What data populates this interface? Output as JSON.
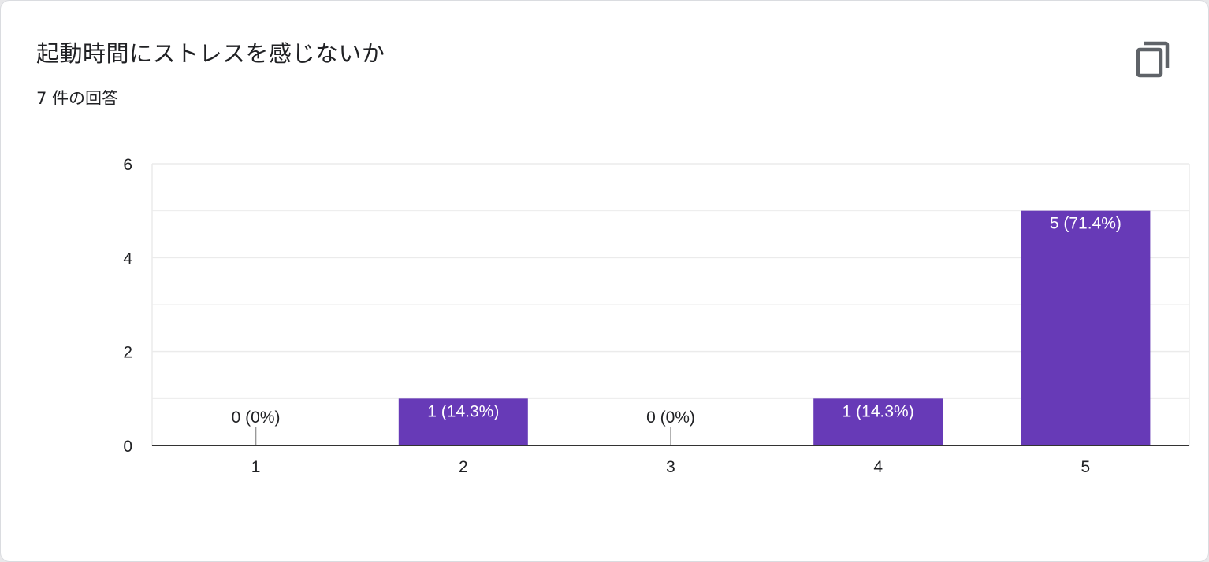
{
  "header": {
    "title": "起動時間にストレスを感じないか",
    "response_count": "7 件の回答",
    "copy_icon": "copy-icon"
  },
  "colors": {
    "bar": "#673ab7",
    "gridline": "#ebebeb",
    "axis": "#333333",
    "label_inside": "#ffffff",
    "label_outside": "#202124"
  },
  "chart_data": {
    "type": "bar",
    "categories": [
      "1",
      "2",
      "3",
      "4",
      "5"
    ],
    "values": [
      0,
      1,
      0,
      1,
      5
    ],
    "data_labels": [
      "0 (0%)",
      "1 (14.3%)",
      "0 (0%)",
      "1 (14.3%)",
      "5 (71.4%)"
    ],
    "ylim": [
      0,
      6
    ],
    "yticks": [
      0,
      2,
      4,
      6
    ],
    "minor_gridlines": [
      1,
      3,
      5
    ],
    "xlabel": "",
    "ylabel": "",
    "grid": true,
    "legend": "none"
  }
}
